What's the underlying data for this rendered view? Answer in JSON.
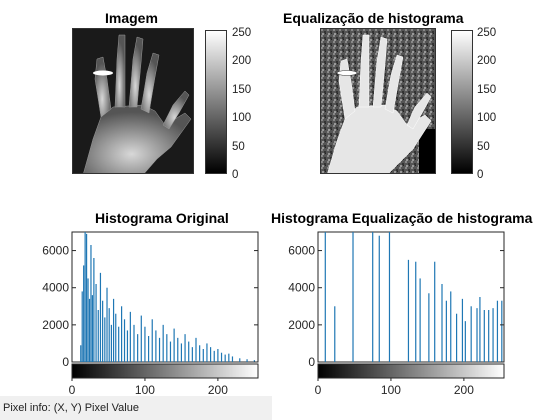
{
  "titles": {
    "image": "Imagem",
    "equalized": "Equalização de histograma",
    "hist_original": "Histograma Original",
    "hist_equalized": "Histograma Equalização de histograma"
  },
  "colorbar": {
    "ticks": [
      "250",
      "200",
      "150",
      "100",
      "50",
      "0"
    ]
  },
  "status_bar": {
    "text": "Pixel info: (X, Y)  Pixel Value"
  },
  "chart_data": [
    {
      "type": "bar",
      "title": "Histograma Original",
      "xlim": [
        0,
        255
      ],
      "ylim": [
        0,
        7000
      ],
      "xticks": [
        0,
        100,
        200
      ],
      "yticks": [
        0,
        2000,
        4000,
        6000
      ],
      "colorbar": "grayscale",
      "x": [
        12,
        14,
        16,
        18,
        20,
        22,
        24,
        26,
        28,
        30,
        33,
        36,
        39,
        42,
        45,
        48,
        51,
        54,
        57,
        60,
        64,
        68,
        72,
        76,
        80,
        85,
        90,
        95,
        100,
        105,
        110,
        115,
        120,
        125,
        130,
        135,
        140,
        145,
        150,
        155,
        160,
        165,
        170,
        175,
        180,
        185,
        190,
        195,
        200,
        205,
        210,
        215,
        220,
        230,
        240,
        250
      ],
      "values": [
        900,
        3800,
        5200,
        7000,
        6900,
        4500,
        3400,
        6300,
        3600,
        5600,
        4200,
        2800,
        4800,
        3300,
        2400,
        4000,
        2900,
        2000,
        3400,
        2600,
        1900,
        3000,
        2300,
        1700,
        2700,
        2000,
        1500,
        2500,
        1900,
        1400,
        2300,
        1700,
        1300,
        2000,
        1500,
        1100,
        1800,
        1300,
        1000,
        1500,
        1100,
        800,
        1300,
        900,
        700,
        1000,
        800,
        600,
        700,
        500,
        400,
        450,
        300,
        200,
        150,
        100
      ]
    },
    {
      "type": "bar",
      "title": "Histograma Equalização de histograma",
      "xlim": [
        0,
        255
      ],
      "ylim": [
        0,
        7000
      ],
      "xticks": [
        0,
        100,
        200
      ],
      "yticks": [
        0,
        2000,
        4000,
        6000
      ],
      "colorbar": "grayscale",
      "x": [
        10,
        23,
        48,
        75,
        84,
        98,
        124,
        134,
        140,
        152,
        160,
        170,
        176,
        182,
        190,
        198,
        202,
        210,
        218,
        222,
        228,
        234,
        240,
        246,
        252
      ],
      "values": [
        7000,
        3000,
        7000,
        7000,
        6800,
        7000,
        5500,
        5400,
        4500,
        3700,
        5400,
        4200,
        3300,
        3800,
        2600,
        3400,
        2200,
        3000,
        2900,
        3500,
        2800,
        2800,
        2900,
        3300,
        3300
      ]
    }
  ]
}
